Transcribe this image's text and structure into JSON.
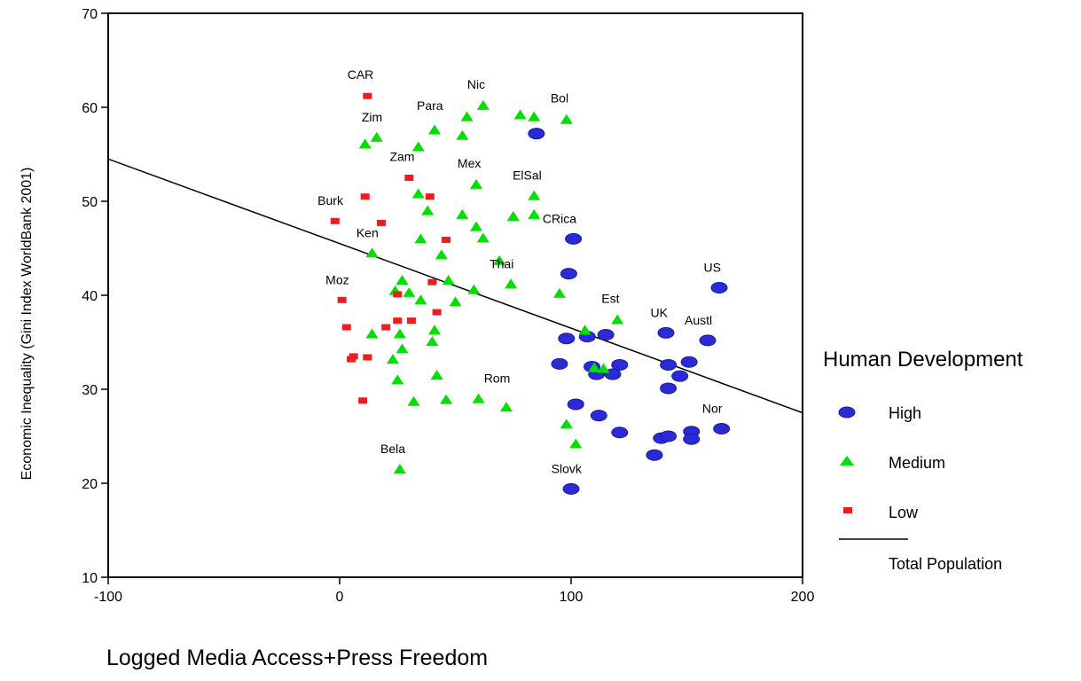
{
  "chart_data": {
    "type": "scatter",
    "xlabel": "Logged Media Access+Press Freedom",
    "ylabel": "Economic Inequality (Gini Index WorldBank 2001)",
    "xlim": [
      -100,
      200
    ],
    "ylim": [
      10,
      70
    ],
    "xticks": [
      -100,
      0,
      100,
      200
    ],
    "yticks": [
      10,
      20,
      30,
      40,
      50,
      60,
      70
    ],
    "grid": false,
    "legend": {
      "title": "Human Development",
      "placement": "right",
      "line_label": "Total Population"
    },
    "regression_line": {
      "x": [
        -100,
        200
      ],
      "y": [
        54.5,
        27.5
      ]
    },
    "series": [
      {
        "name": "High",
        "color": "#2b2bd6",
        "marker": "ellipse",
        "points": [
          {
            "x": 85,
            "y": 57.2
          },
          {
            "x": 101,
            "y": 46.0
          },
          {
            "x": 99,
            "y": 42.3
          },
          {
            "x": 164,
            "y": 40.8
          },
          {
            "x": 141,
            "y": 36.0
          },
          {
            "x": 98,
            "y": 35.4
          },
          {
            "x": 107,
            "y": 35.6
          },
          {
            "x": 115,
            "y": 35.8
          },
          {
            "x": 159,
            "y": 35.2
          },
          {
            "x": 95,
            "y": 32.7
          },
          {
            "x": 109,
            "y": 32.4
          },
          {
            "x": 111,
            "y": 31.6
          },
          {
            "x": 118,
            "y": 31.6
          },
          {
            "x": 121,
            "y": 32.6
          },
          {
            "x": 142,
            "y": 32.6
          },
          {
            "x": 151,
            "y": 32.9
          },
          {
            "x": 147,
            "y": 31.4
          },
          {
            "x": 142,
            "y": 30.1
          },
          {
            "x": 102,
            "y": 28.4
          },
          {
            "x": 112,
            "y": 27.2
          },
          {
            "x": 121,
            "y": 25.4
          },
          {
            "x": 139,
            "y": 24.8
          },
          {
            "x": 142,
            "y": 25.0
          },
          {
            "x": 152,
            "y": 25.5
          },
          {
            "x": 152,
            "y": 24.7
          },
          {
            "x": 165,
            "y": 25.8
          },
          {
            "x": 136,
            "y": 23.0
          },
          {
            "x": 100,
            "y": 19.4
          }
        ]
      },
      {
        "name": "Medium",
        "color": "#00e000",
        "marker": "triangle",
        "points": [
          {
            "x": 62,
            "y": 60.2
          },
          {
            "x": 55,
            "y": 59.0
          },
          {
            "x": 78,
            "y": 59.2
          },
          {
            "x": 84,
            "y": 59.0
          },
          {
            "x": 98,
            "y": 58.7
          },
          {
            "x": 41,
            "y": 57.6
          },
          {
            "x": 53,
            "y": 57.0
          },
          {
            "x": 16,
            "y": 56.8
          },
          {
            "x": 11,
            "y": 56.1
          },
          {
            "x": 34,
            "y": 55.8
          },
          {
            "x": 59,
            "y": 51.8
          },
          {
            "x": 84,
            "y": 50.6
          },
          {
            "x": 34,
            "y": 50.8
          },
          {
            "x": 38,
            "y": 49.0
          },
          {
            "x": 53,
            "y": 48.6
          },
          {
            "x": 75,
            "y": 48.4
          },
          {
            "x": 84,
            "y": 48.6
          },
          {
            "x": 59,
            "y": 47.3
          },
          {
            "x": 35,
            "y": 46.0
          },
          {
            "x": 62,
            "y": 46.1
          },
          {
            "x": 14,
            "y": 44.5
          },
          {
            "x": 44,
            "y": 44.3
          },
          {
            "x": 69,
            "y": 43.7
          },
          {
            "x": 47,
            "y": 41.6
          },
          {
            "x": 74,
            "y": 41.2
          },
          {
            "x": 27,
            "y": 41.6
          },
          {
            "x": 24,
            "y": 40.5
          },
          {
            "x": 30,
            "y": 40.3
          },
          {
            "x": 58,
            "y": 40.6
          },
          {
            "x": 95,
            "y": 40.2
          },
          {
            "x": 35,
            "y": 39.5
          },
          {
            "x": 50,
            "y": 39.3
          },
          {
            "x": 120,
            "y": 37.4
          },
          {
            "x": 106,
            "y": 36.3
          },
          {
            "x": 14,
            "y": 35.9
          },
          {
            "x": 26,
            "y": 35.9
          },
          {
            "x": 41,
            "y": 36.3
          },
          {
            "x": 40,
            "y": 35.1
          },
          {
            "x": 27,
            "y": 34.3
          },
          {
            "x": 23,
            "y": 33.2
          },
          {
            "x": 110,
            "y": 32.3
          },
          {
            "x": 114,
            "y": 32.2
          },
          {
            "x": 25,
            "y": 31.0
          },
          {
            "x": 42,
            "y": 31.5
          },
          {
            "x": 32,
            "y": 28.7
          },
          {
            "x": 46,
            "y": 28.9
          },
          {
            "x": 60,
            "y": 29.0
          },
          {
            "x": 72,
            "y": 28.1
          },
          {
            "x": 98,
            "y": 26.3
          },
          {
            "x": 102,
            "y": 24.2
          },
          {
            "x": 26,
            "y": 21.5
          }
        ]
      },
      {
        "name": "Low",
        "color": "#ee1c1c",
        "marker": "square",
        "points": [
          {
            "x": 12,
            "y": 61.2
          },
          {
            "x": 30,
            "y": 52.5
          },
          {
            "x": 11,
            "y": 50.5
          },
          {
            "x": 39,
            "y": 50.5
          },
          {
            "x": -2,
            "y": 47.9
          },
          {
            "x": 18,
            "y": 47.7
          },
          {
            "x": 46,
            "y": 45.9
          },
          {
            "x": 40,
            "y": 41.4
          },
          {
            "x": 25,
            "y": 40.1
          },
          {
            "x": 1,
            "y": 39.5
          },
          {
            "x": 42,
            "y": 38.2
          },
          {
            "x": 25,
            "y": 37.3
          },
          {
            "x": 31,
            "y": 37.3
          },
          {
            "x": 3,
            "y": 36.6
          },
          {
            "x": 20,
            "y": 36.6
          },
          {
            "x": 12,
            "y": 33.4
          },
          {
            "x": 6,
            "y": 33.5
          },
          {
            "x": 5,
            "y": 33.2
          },
          {
            "x": 10,
            "y": 28.8
          }
        ]
      }
    ],
    "annotations": [
      {
        "text": "CAR",
        "x": 9,
        "y": 63.0
      },
      {
        "text": "Nic",
        "x": 59,
        "y": 62.0
      },
      {
        "text": "Bol",
        "x": 95,
        "y": 60.5
      },
      {
        "text": "Para",
        "x": 39,
        "y": 59.7
      },
      {
        "text": "Zim",
        "x": 14,
        "y": 58.5
      },
      {
        "text": "Zam",
        "x": 27,
        "y": 54.3
      },
      {
        "text": "Mex",
        "x": 56,
        "y": 53.6
      },
      {
        "text": "ElSal",
        "x": 81,
        "y": 52.3
      },
      {
        "text": "Burk",
        "x": -4,
        "y": 49.6
      },
      {
        "text": "CRica",
        "x": 95,
        "y": 47.7
      },
      {
        "text": "Ken",
        "x": 12,
        "y": 46.2
      },
      {
        "text": "Thai",
        "x": 70,
        "y": 42.9
      },
      {
        "text": "US",
        "x": 161,
        "y": 42.5
      },
      {
        "text": "Moz",
        "x": -1,
        "y": 41.2
      },
      {
        "text": "Est",
        "x": 117,
        "y": 39.2
      },
      {
        "text": "UK",
        "x": 138,
        "y": 37.7
      },
      {
        "text": "Austl",
        "x": 155,
        "y": 36.9
      },
      {
        "text": "Rom",
        "x": 68,
        "y": 30.7
      },
      {
        "text": "Nor",
        "x": 161,
        "y": 27.5
      },
      {
        "text": "Bela",
        "x": 23,
        "y": 23.2
      },
      {
        "text": "Slovk",
        "x": 98,
        "y": 21.1
      }
    ]
  }
}
